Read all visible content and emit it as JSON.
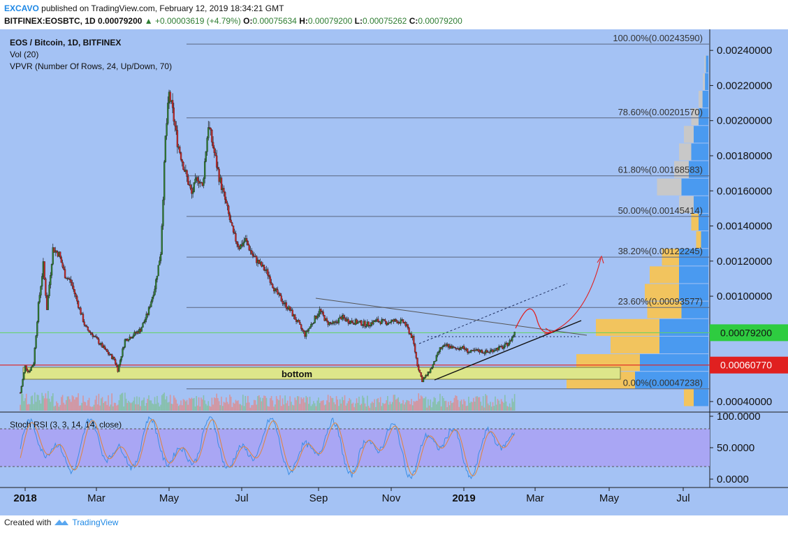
{
  "header": {
    "brand": "EXCAVO",
    "published_text": "published on TradingView.com, February 12, 2019 18:34:21 GMT",
    "symbol": "BITFINEX:EOSBTC, 1D",
    "last": "0.00079200",
    "change": "▲ +0.00003619 (+4.79%)",
    "o_label": "O:",
    "o_value": "0.00075634",
    "h_label": "H:",
    "h_value": "0.00079200",
    "l_label": "L:",
    "l_value": "0.00075262",
    "c_label": "C:",
    "c_value": "0.00079200"
  },
  "legend": {
    "title": "EOS / Bitcoin, 1D, BITFINEX",
    "vol": "Vol (20)",
    "vpvr": "VPVR (Number Of Rows, 24, Up/Down, 70)"
  },
  "stoch_label": "Stoch RSI (3, 3, 14, 14, close)",
  "footer": {
    "created_with": "Created with",
    "tradingview": "TradingView"
  },
  "colors": {
    "background": "#a4c2f4",
    "bull": "#2e7d32",
    "bear": "#c62828",
    "current_price": "#2ecc40",
    "support_price": "#e02020",
    "bottom_zone": "#dde68a",
    "vpvr_up": "#4a9af0",
    "vpvr_down": "#f2c45e",
    "stoch_band": "#a9a6f4"
  },
  "chart_data": {
    "type": "candlestick",
    "title": "EOS / Bitcoin, 1D, BITFINEX",
    "x_tick_labels": [
      "2018",
      "Mar",
      "May",
      "Jul",
      "Sep",
      "Nov",
      "2019",
      "Mar",
      "May",
      "Jul"
    ],
    "y_tick_labels": [
      "0.00240000",
      "0.00220000",
      "0.00200000",
      "0.00180000",
      "0.00160000",
      "0.00140000",
      "0.00120000",
      "0.00100000",
      "0.00040000"
    ],
    "ylim": [
      0.00034,
      0.00252
    ],
    "current_price_label": "0.00079200",
    "support_price_label": "0.00060770",
    "zone_label": "bottom",
    "fibonacci_levels": [
      {
        "label": "100.00%(0.00243590)",
        "value": 0.0024359
      },
      {
        "label": "78.60%(0.00201570)",
        "value": 0.0020157
      },
      {
        "label": "61.80%(0.00168583)",
        "value": 0.00168583
      },
      {
        "label": "50.00%(0.00145414)",
        "value": 0.00145414
      },
      {
        "label": "38.20%(0.00122245)",
        "value": 0.00122245
      },
      {
        "label": "23.60%(0.00093577)",
        "value": 0.00093577
      },
      {
        "label": "0.00%(0.00047238)",
        "value": 0.00047238
      }
    ],
    "price_path": [
      [
        "2017-12-28",
        0.00045
      ],
      [
        "2018-01-01",
        0.0006
      ],
      [
        "2018-01-04",
        0.00057
      ],
      [
        "2018-01-08",
        0.00062
      ],
      [
        "2018-01-12",
        0.00095
      ],
      [
        "2018-01-16",
        0.00118
      ],
      [
        "2018-01-19",
        0.00093
      ],
      [
        "2018-01-24",
        0.00127
      ],
      [
        "2018-01-29",
        0.00124
      ],
      [
        "2018-02-03",
        0.00112
      ],
      [
        "2018-02-08",
        0.00108
      ],
      [
        "2018-02-14",
        0.00095
      ],
      [
        "2018-02-20",
        0.00082
      ],
      [
        "2018-02-26",
        0.00078
      ],
      [
        "2018-03-04",
        0.00073
      ],
      [
        "2018-03-10",
        0.00068
      ],
      [
        "2018-03-16",
        0.00064
      ],
      [
        "2018-03-19",
        0.00058
      ],
      [
        "2018-03-25",
        0.00075
      ],
      [
        "2018-04-01",
        0.00078
      ],
      [
        "2018-04-07",
        0.00081
      ],
      [
        "2018-04-13",
        0.0009
      ],
      [
        "2018-04-19",
        0.00105
      ],
      [
        "2018-04-24",
        0.00125
      ],
      [
        "2018-04-28",
        0.0019
      ],
      [
        "2018-05-01",
        0.00215
      ],
      [
        "2018-05-04",
        0.00205
      ],
      [
        "2018-05-08",
        0.00188
      ],
      [
        "2018-05-14",
        0.00172
      ],
      [
        "2018-05-20",
        0.00158
      ],
      [
        "2018-05-25",
        0.00168
      ],
      [
        "2018-05-29",
        0.00162
      ],
      [
        "2018-06-03",
        0.00198
      ],
      [
        "2018-06-07",
        0.00185
      ],
      [
        "2018-06-12",
        0.00168
      ],
      [
        "2018-06-18",
        0.00152
      ],
      [
        "2018-06-24",
        0.00135
      ],
      [
        "2018-06-29",
        0.00128
      ],
      [
        "2018-07-04",
        0.00132
      ],
      [
        "2018-07-10",
        0.00123
      ],
      [
        "2018-07-16",
        0.00118
      ],
      [
        "2018-07-22",
        0.00113
      ],
      [
        "2018-07-28",
        0.00103
      ],
      [
        "2018-08-03",
        0.00097
      ],
      [
        "2018-08-09",
        0.00092
      ],
      [
        "2018-08-15",
        0.00085
      ],
      [
        "2018-08-21",
        0.00078
      ],
      [
        "2018-08-27",
        0.00085
      ],
      [
        "2018-09-02",
        0.00092
      ],
      [
        "2018-09-08",
        0.00085
      ],
      [
        "2018-09-14",
        0.00084
      ],
      [
        "2018-09-20",
        0.00088
      ],
      [
        "2018-09-26",
        0.00086
      ],
      [
        "2018-10-04",
        0.00085
      ],
      [
        "2018-10-12",
        0.00084
      ],
      [
        "2018-10-20",
        0.00086
      ],
      [
        "2018-10-28",
        0.00085
      ],
      [
        "2018-11-05",
        0.00086
      ],
      [
        "2018-11-12",
        0.00085
      ],
      [
        "2018-11-19",
        0.00076
      ],
      [
        "2018-11-23",
        0.00061
      ],
      [
        "2018-11-27",
        0.00052
      ],
      [
        "2018-12-02",
        0.00056
      ],
      [
        "2018-12-07",
        0.00062
      ],
      [
        "2018-12-12",
        0.0007
      ],
      [
        "2018-12-18",
        0.00072
      ],
      [
        "2018-12-24",
        0.0007
      ],
      [
        "2018-12-30",
        0.00071
      ],
      [
        "2019-01-06",
        0.00068
      ],
      [
        "2019-01-13",
        0.00069
      ],
      [
        "2019-01-20",
        0.00068
      ],
      [
        "2019-01-27",
        0.0007
      ],
      [
        "2019-02-03",
        0.00071
      ],
      [
        "2019-02-08",
        0.00074
      ],
      [
        "2019-02-12",
        0.000792
      ]
    ],
    "vpvr_rows": [
      {
        "price": 0.00232,
        "up": 0.005,
        "down": 0.003
      },
      {
        "price": 0.00222,
        "up": 0.007,
        "down": 0.004
      },
      {
        "price": 0.00212,
        "up": 0.012,
        "down": 0.008
      },
      {
        "price": 0.00202,
        "up": 0.02,
        "down": 0.015
      },
      {
        "price": 0.00192,
        "up": 0.03,
        "down": 0.02
      },
      {
        "price": 0.00182,
        "up": 0.035,
        "down": 0.025
      },
      {
        "price": 0.00172,
        "up": 0.04,
        "down": 0.03
      },
      {
        "price": 0.00162,
        "up": 0.055,
        "down": 0.05
      },
      {
        "price": 0.00152,
        "up": 0.03,
        "down": 0.03
      },
      {
        "price": 0.00142,
        "up": 0.02,
        "down": 0.015
      },
      {
        "price": 0.00132,
        "up": 0.015,
        "down": 0.01
      },
      {
        "price": 0.00122,
        "up": 0.06,
        "down": 0.035
      },
      {
        "price": 0.00112,
        "up": 0.06,
        "down": 0.06
      },
      {
        "price": 0.00102,
        "up": 0.06,
        "down": 0.07
      },
      {
        "price": 0.00092,
        "up": 0.055,
        "down": 0.07
      },
      {
        "price": 0.00082,
        "up": 0.1,
        "down": 0.13
      },
      {
        "price": 0.00072,
        "up": 0.1,
        "down": 0.1
      },
      {
        "price": 0.00062,
        "up": 0.14,
        "down": 0.13
      },
      {
        "price": 0.00052,
        "up": 0.15,
        "down": 0.14
      },
      {
        "price": 0.00042,
        "up": 0.03,
        "down": 0.02
      }
    ],
    "stoch_rsi": {
      "y_tick_labels": [
        "100.0000",
        "50.0000",
        "0.0000"
      ],
      "ylim": [
        0,
        100
      ],
      "band": [
        20,
        80
      ]
    }
  }
}
